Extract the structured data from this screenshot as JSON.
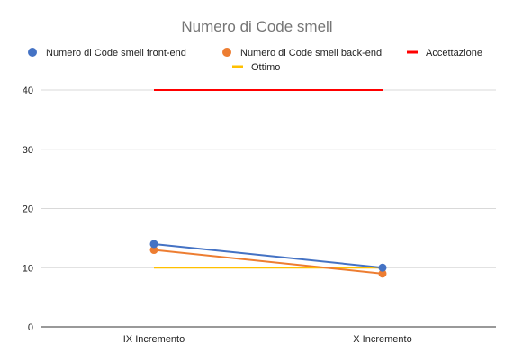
{
  "chart_data": {
    "type": "line",
    "title": "Numero di Code smell",
    "xlabel": "",
    "ylabel": "",
    "categories": [
      "IX Incremento",
      "X Incremento"
    ],
    "ylim": [
      0,
      40
    ],
    "yticks": [
      "0",
      "10",
      "20",
      "30",
      "40"
    ],
    "grid": true,
    "legend_position": "top",
    "series": [
      {
        "name": "Numero di Code smell front-end",
        "values": [
          14,
          10
        ],
        "color": "#4472c4",
        "marker": "circle"
      },
      {
        "name": "Numero di Code smell back-end",
        "values": [
          13,
          9
        ],
        "color": "#ed7d31",
        "marker": "circle"
      },
      {
        "name": "Accettazione",
        "values": [
          40,
          40
        ],
        "color": "#ff0000",
        "marker": "none"
      },
      {
        "name": "Ottimo",
        "values": [
          10,
          10
        ],
        "color": "#ffc000",
        "marker": "none"
      }
    ]
  }
}
